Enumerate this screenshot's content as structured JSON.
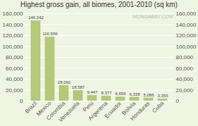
{
  "chart_data": {
    "type": "bar",
    "title": "Highest gross gain, all biomes, 2001-2010 (sq km)",
    "annotation": "MONGABAY.COM",
    "categories": [
      "Brazil",
      "Mexico",
      "Colombia",
      "Venezuela",
      "Peru",
      "Argentina",
      "Ecuador",
      "Bolivia",
      "Honduras",
      "Cuba"
    ],
    "values": [
      146342,
      116556,
      28092,
      18587,
      9447,
      8377,
      6656,
      6338,
      5086,
      3355
    ],
    "value_labels": [
      "146,342",
      "116,556",
      "28,092",
      "18,587",
      "9,447",
      "8,377",
      "6,656",
      "6,338",
      "5,086",
      "3,355"
    ],
    "data_labels": true,
    "color": "#b5c97a",
    "ylim": [
      0,
      160000
    ],
    "yticks": [
      0,
      {
        "value": 20000,
        "label": "20,000"
      },
      {
        "value": 40000,
        "label": "40,000"
      },
      {
        "value": 60000,
        "label": "60,000"
      },
      {
        "value": 80000,
        "label": "80,000"
      },
      {
        "value": 100000,
        "label": "100,000"
      },
      {
        "value": 120000,
        "label": "120,000"
      },
      {
        "value": 140000,
        "label": "140,000"
      },
      {
        "value": 160000,
        "label": "160,000"
      }
    ],
    "grid": true
  }
}
